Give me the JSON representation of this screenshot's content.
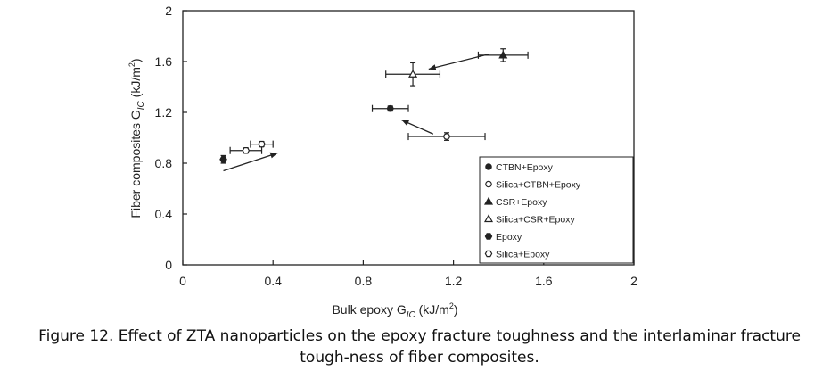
{
  "chart_data": {
    "type": "scatter",
    "xlabel": "Bulk epoxy G",
    "xlabel_sub": "IC",
    "xlabel_unit": " (kJ/m",
    "xlabel_unit_sup": "2",
    "xlabel_close": ")",
    "ylabel": "Fiber composites G",
    "ylabel_sub": "IC",
    "ylabel_unit": " (kJ/m",
    "ylabel_unit_sup": "2",
    "ylabel_close": ")",
    "xlim": [
      0,
      2
    ],
    "ylim": [
      0,
      2
    ],
    "xticks": [
      0,
      0.4,
      0.8,
      1.2,
      1.6,
      2
    ],
    "yticks": [
      0,
      0.4,
      0.8,
      1.2,
      1.6,
      2
    ],
    "xtick_labels": [
      "0",
      "0.4",
      "0.8",
      "1.2",
      "1.6",
      "2"
    ],
    "ytick_labels": [
      "0",
      "0.4",
      "0.8",
      "1.2",
      "1.6",
      "2"
    ],
    "legend_position": "bottom-right",
    "series": [
      {
        "name": "CTBN+Epoxy",
        "marker": "filled-circle",
        "x": 0.92,
        "y": 1.23,
        "xerr": 0.08,
        "yerr": 0.02
      },
      {
        "name": "Silica+CTBN+Epoxy",
        "marker": "open-circle",
        "x": 1.17,
        "y": 1.01,
        "xerr": 0.17,
        "yerr": 0.03
      },
      {
        "name": "CSR+Epoxy",
        "marker": "filled-triangle",
        "x": 1.42,
        "y": 1.65,
        "xerr": 0.11,
        "yerr": 0.05
      },
      {
        "name": "Silica+CSR+Epoxy",
        "marker": "open-triangle",
        "x": 1.02,
        "y": 1.5,
        "xerr": 0.12,
        "yerr": 0.09
      },
      {
        "name": "Epoxy",
        "marker": "filled-hexagon",
        "x": 0.18,
        "y": 0.83,
        "xerr": 0.0,
        "yerr": 0.03
      },
      {
        "name": "Silica+Epoxy",
        "marker": "open-hexagon",
        "x": 0.28,
        "y": 0.9,
        "xerr": 0.07,
        "yerr": 0.02
      },
      {
        "name": "Silica+Epoxy",
        "marker": "open-hexagon",
        "x": 0.35,
        "y": 0.95,
        "xerr": 0.05,
        "yerr": 0.02
      }
    ],
    "arrows": [
      {
        "from": [
          1.36,
          1.66
        ],
        "to": [
          1.09,
          1.54
        ]
      },
      {
        "from": [
          1.11,
          1.03
        ],
        "to": [
          0.97,
          1.14
        ]
      },
      {
        "from": [
          0.18,
          0.74
        ],
        "to": [
          0.42,
          0.88
        ]
      }
    ]
  },
  "caption": {
    "line1": "Figure 12. Effect of ZTA nanoparticles on the epoxy fracture toughness and the interlaminar fracture",
    "line2": "tough-ness of fiber composites."
  }
}
